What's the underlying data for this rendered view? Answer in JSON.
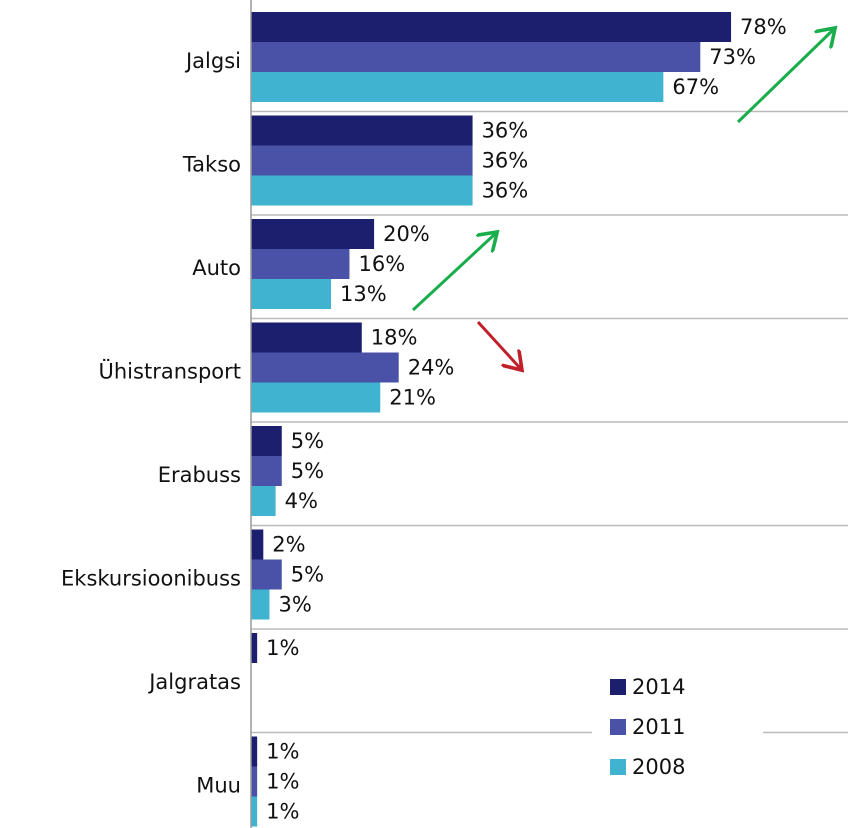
{
  "chart_data": {
    "type": "barh",
    "categories": [
      "Jalgsi",
      "Takso",
      "Auto",
      "Ühistransport",
      "Erabuss",
      "Ekskursioonibuss",
      "Jalgratas",
      "Muu"
    ],
    "series": [
      {
        "name": "2014",
        "color": "#1b1f6e",
        "values": [
          78,
          36,
          20,
          18,
          5,
          2,
          1,
          1
        ],
        "value_labels": [
          "78%",
          "36%",
          "20%",
          "18%",
          "5%",
          "2%",
          "1%",
          "1%"
        ]
      },
      {
        "name": "2011",
        "color": "#4a52a8",
        "values": [
          73,
          36,
          16,
          24,
          5,
          5,
          null,
          1
        ],
        "value_labels": [
          "73%",
          "36%",
          "16%",
          "24%",
          "5%",
          "5%",
          null,
          "1%"
        ]
      },
      {
        "name": "2008",
        "color": "#3fb3cf",
        "values": [
          67,
          36,
          13,
          21,
          4,
          3,
          null,
          1
        ],
        "value_labels": [
          "67%",
          "36%",
          "13%",
          "21%",
          "4%",
          "3%",
          null,
          "1%"
        ]
      }
    ],
    "xlim": [
      0,
      97
    ],
    "grid": true,
    "legend": "lower right"
  }
}
